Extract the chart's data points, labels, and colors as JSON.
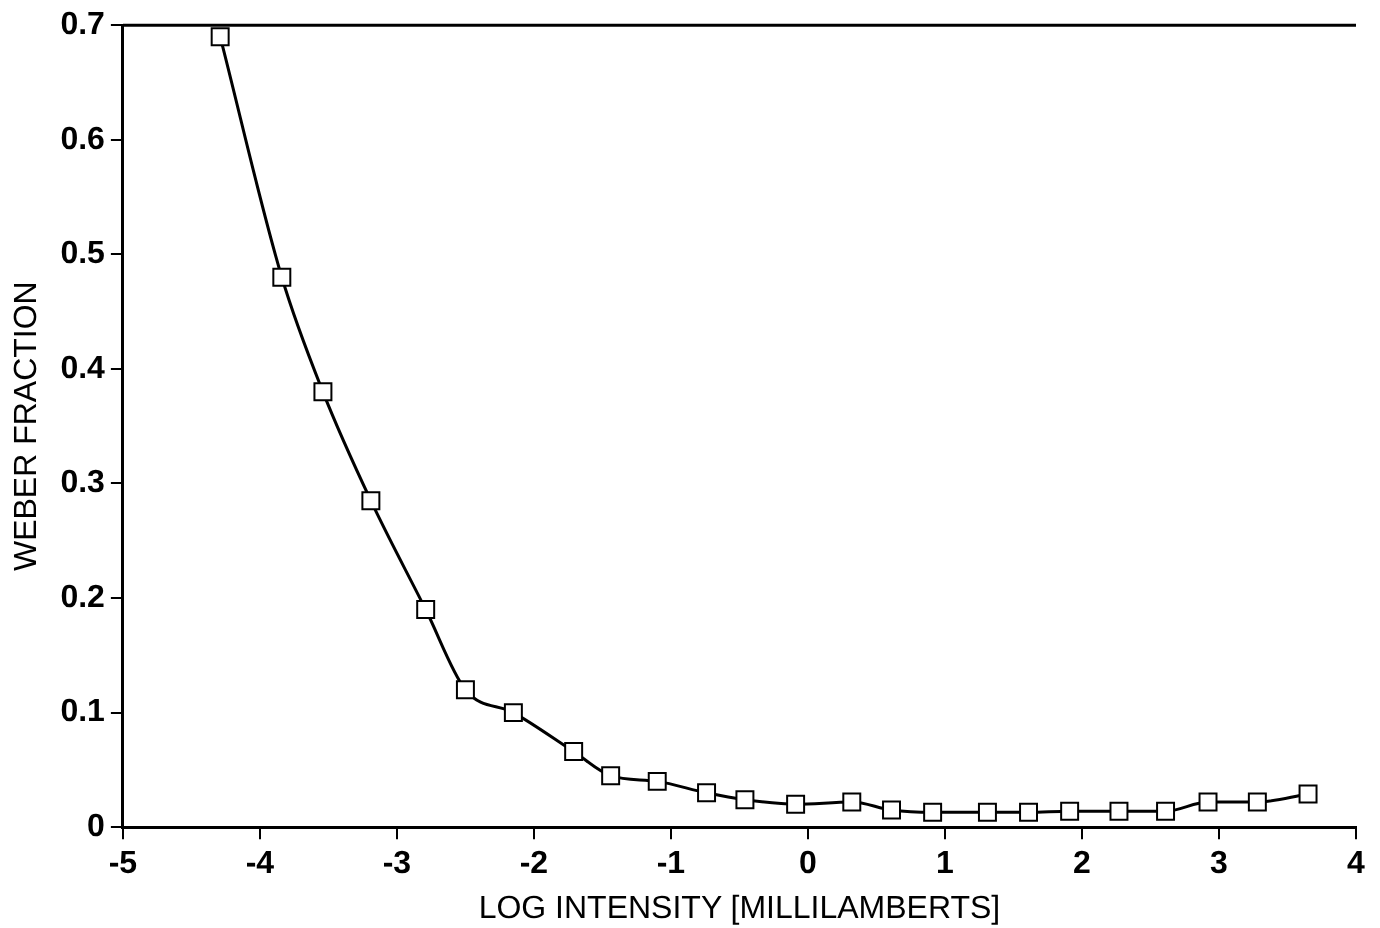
{
  "chart_data": {
    "type": "line",
    "xlabel": "LOG INTENSITY [MILLILAMBERTS]",
    "ylabel": "WEBER FRACTION",
    "x": [
      -4.29,
      -3.84,
      -3.54,
      -3.19,
      -2.79,
      -2.5,
      -2.15,
      -1.71,
      -1.44,
      -1.1,
      -0.74,
      -0.46,
      -0.09,
      0.32,
      0.61,
      0.91,
      1.31,
      1.61,
      1.91,
      2.27,
      2.61,
      2.92,
      3.28,
      3.65
    ],
    "series": [
      {
        "color": "#000000",
        "values": [
          0.69,
          0.48,
          0.38,
          0.285,
          0.19,
          0.12,
          0.1,
          0.066,
          0.045,
          0.04,
          0.03,
          0.024,
          0.02,
          0.022,
          0.015,
          0.013,
          0.013,
          0.013,
          0.014,
          0.014,
          0.014,
          0.022,
          0.022,
          0.029
        ]
      }
    ],
    "xlim": [
      -5,
      4
    ],
    "xticks": [
      -5,
      -4,
      -3,
      -2,
      -1,
      0,
      1,
      2,
      3,
      4
    ],
    "ylim": [
      0,
      0.7
    ],
    "yticks": [
      0,
      0.1,
      0.2,
      0.3,
      0.4,
      0.5,
      0.6,
      0.7
    ],
    "grid": false,
    "legend": false,
    "marker": "square",
    "line_style": "solid"
  }
}
